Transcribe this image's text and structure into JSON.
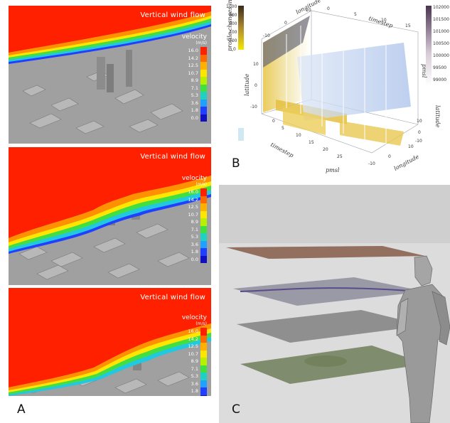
{
  "panel_labels": {
    "a": "A",
    "b": "B",
    "c": "C"
  },
  "wind_panels": [
    {
      "title": "Vertical wind flow",
      "legend_title": "velocity",
      "legend_unit": "(m/s)"
    },
    {
      "title": "Vertical wind flow",
      "legend_title": "velocity",
      "legend_unit": "(m/s)"
    },
    {
      "title": "Vertical wind flow",
      "legend_title": "velocity",
      "legend_unit": "(m/s)"
    }
  ],
  "legend_ticks": [
    "16.0",
    "14.2",
    "12.5",
    "10.7",
    "8.9",
    "7.1",
    "5.3",
    "3.6",
    "1.8",
    "0.0"
  ],
  "legend_colors": [
    "#ff2000",
    "#ff6a00",
    "#ffb000",
    "#ffe600",
    "#b8f000",
    "#40e040",
    "#20d0c0",
    "#20a0ff",
    "#2040ff",
    "#1010c0"
  ],
  "volume_plot": {
    "axis_labels": {
      "longitude_top": "longitude",
      "timestep_top": "timestep",
      "latitude_left": "latitude",
      "timestep_bottom": "timestep",
      "pmsl": "pmsl",
      "longitude_bottom": "longitude",
      "latitude_right": "latitude",
      "profile": "profile changes in",
      "colorbar_right": "pmsl"
    },
    "ticks": {
      "left_vertical": [
        "10",
        "0",
        "-10"
      ],
      "bottom_timestep": [
        "0",
        "5",
        "10",
        "15",
        "20",
        "25"
      ],
      "bottom_longitude": [
        "-10",
        "0",
        "10"
      ],
      "right_latitude": [
        "10",
        "0",
        "-10"
      ],
      "top_longitude": [
        "-10",
        "0",
        "10"
      ],
      "top_timestep": [
        "0",
        "5",
        "10",
        "15"
      ]
    },
    "colorbar_left_ticks": [
      "1000",
      "800",
      "600",
      "400",
      "200",
      "0"
    ],
    "colorbar_right_ticks": [
      "102000",
      "101500",
      "101000",
      "100500",
      "100000",
      "99500",
      "99000"
    ]
  }
}
